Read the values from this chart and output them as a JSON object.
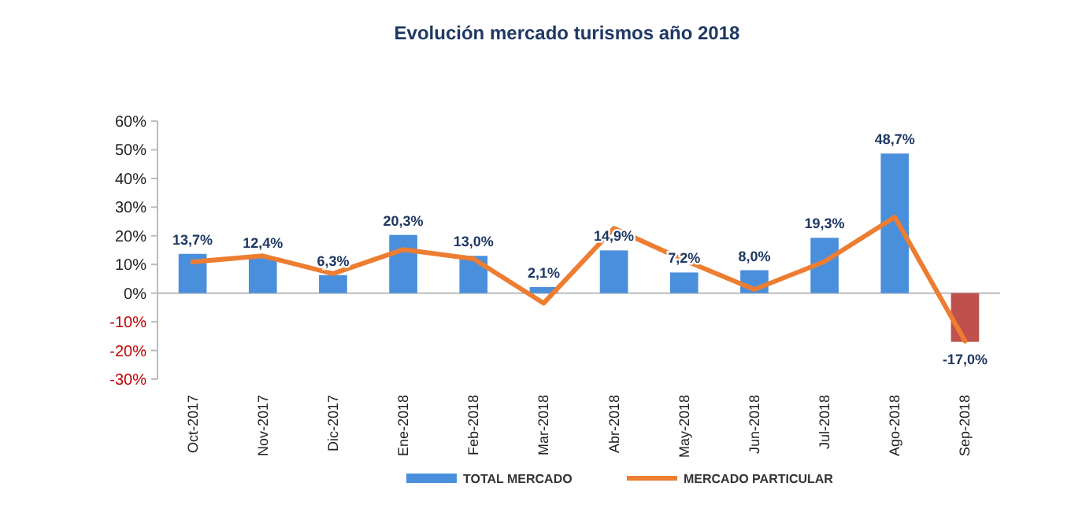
{
  "chart_data": {
    "type": "bar",
    "title": "Evolución mercado turismos año 2018",
    "categories": [
      "Oct-2017",
      "Nov-2017",
      "Dic-2017",
      "Ene-2018",
      "Feb-2018",
      "Mar-2018",
      "Abr-2018",
      "May-2018",
      "Jun-2018",
      "Jul-2018",
      "Ago-2018",
      "Sep-2018"
    ],
    "series": [
      {
        "name": "TOTAL MERCADO",
        "color": "#4a8fdc",
        "colors": [
          "#4a8fdc",
          "#4a8fdc",
          "#4a8fdc",
          "#4a8fdc",
          "#4a8fdc",
          "#4a8fdc",
          "#4a8fdc",
          "#4a8fdc",
          "#4a8fdc",
          "#4a8fdc",
          "#4a8fdc",
          "#c0504d"
        ],
        "values": [
          13.7,
          12.4,
          6.3,
          20.3,
          13.0,
          2.1,
          14.9,
          7.2,
          8.0,
          19.3,
          48.7,
          -17.0
        ],
        "value_labels": [
          "13,7%",
          "12,4%",
          "6,3%",
          "20,3%",
          "13,0%",
          "2,1%",
          "14,9%",
          "7,2%",
          "8,0%",
          "19,3%",
          "48,7%",
          "-17,0%"
        ]
      },
      {
        "name": "MERCADO PARTICULAR",
        "type": "line",
        "color": "#ed7d31",
        "values": [
          10.9,
          13,
          6.8,
          15.2,
          12,
          -3.5,
          22.6,
          11.5,
          1.3,
          11,
          26.5,
          -16.7
        ]
      }
    ],
    "ylim": [
      -30,
      60
    ],
    "yticks": [
      {
        "value": -30,
        "label": "-30%"
      },
      {
        "value": -20,
        "label": "-20%"
      },
      {
        "value": -10,
        "label": "-10%"
      },
      {
        "value": 0,
        "label": "0%"
      },
      {
        "value": 10,
        "label": "10%"
      },
      {
        "value": 20,
        "label": "20%"
      },
      {
        "value": 30,
        "label": "30%"
      },
      {
        "value": 40,
        "label": "40%"
      },
      {
        "value": 50,
        "label": "50%"
      },
      {
        "value": 60,
        "label": "60%"
      }
    ],
    "legend": "bottom",
    "marker": "none",
    "line_style": "solid"
  }
}
